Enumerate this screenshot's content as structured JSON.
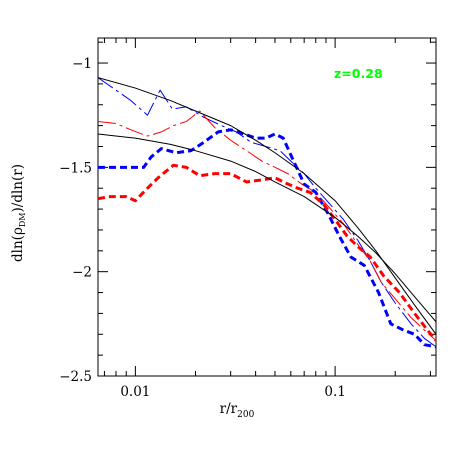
{
  "chart_data": {
    "type": "line",
    "xscale": "log",
    "xlim": [
      0.0065,
      0.32
    ],
    "ylim": [
      -2.5,
      -0.88
    ],
    "xticks": [
      {
        "value": 0.01,
        "label": "0.01"
      },
      {
        "value": 0.1,
        "label": "0.1"
      }
    ],
    "yticks": [
      {
        "value": -1.0,
        "label": "−1"
      },
      {
        "value": -1.5,
        "label": "−1.5"
      },
      {
        "value": -2.0,
        "label": "−2"
      },
      {
        "value": -2.5,
        "label": "−2.5"
      }
    ],
    "xlabel": {
      "main": "r/r",
      "sub": "200"
    },
    "ylabel": {
      "pre": "dln(ρ",
      "sub": "DM",
      "post": ")/dln(r)"
    },
    "annotation": {
      "text": "z=0.28",
      "color": "#00ff00"
    },
    "grid": false,
    "series": [
      {
        "color": "#0000ff",
        "style": "long-dash",
        "width": 1,
        "x": [
          0.0065,
          0.008,
          0.0095,
          0.0115,
          0.0133,
          0.0153,
          0.018,
          0.022,
          0.027,
          0.032,
          0.038,
          0.045,
          0.053,
          0.06,
          0.07,
          0.08,
          0.095,
          0.11,
          0.13,
          0.15,
          0.17,
          0.2,
          0.24,
          0.28,
          0.32
        ],
        "y": [
          -1.07,
          -1.13,
          -1.18,
          -1.25,
          -1.13,
          -1.22,
          -1.21,
          -1.26,
          -1.3,
          -1.33,
          -1.38,
          -1.4,
          -1.42,
          -1.47,
          -1.53,
          -1.6,
          -1.68,
          -1.75,
          -1.85,
          -1.95,
          -2.05,
          -2.15,
          -2.25,
          -2.32,
          -2.36
        ]
      },
      {
        "color": "#ff0000",
        "style": "long-dash",
        "width": 1,
        "x": [
          0.0065,
          0.008,
          0.0095,
          0.0115,
          0.0135,
          0.0155,
          0.018,
          0.021,
          0.025,
          0.03,
          0.036,
          0.043,
          0.05,
          0.058,
          0.068,
          0.08,
          0.095,
          0.11,
          0.13,
          0.15,
          0.17,
          0.2,
          0.24,
          0.28,
          0.32
        ],
        "y": [
          -1.28,
          -1.29,
          -1.32,
          -1.35,
          -1.33,
          -1.3,
          -1.28,
          -1.23,
          -1.31,
          -1.37,
          -1.42,
          -1.47,
          -1.5,
          -1.53,
          -1.58,
          -1.62,
          -1.7,
          -1.77,
          -1.87,
          -1.95,
          -2.05,
          -2.13,
          -2.22,
          -2.28,
          -2.33
        ]
      },
      {
        "color": "#0000ff",
        "style": "short-dash",
        "width": 3,
        "x": [
          0.0065,
          0.008,
          0.0095,
          0.011,
          0.012,
          0.0135,
          0.016,
          0.019,
          0.022,
          0.026,
          0.03,
          0.035,
          0.04,
          0.045,
          0.05,
          0.055,
          0.062,
          0.07,
          0.08,
          0.092,
          0.105,
          0.12,
          0.14,
          0.165,
          0.19,
          0.22,
          0.25,
          0.28,
          0.32
        ],
        "y": [
          -1.5,
          -1.5,
          -1.5,
          -1.5,
          -1.45,
          -1.41,
          -1.43,
          -1.42,
          -1.38,
          -1.33,
          -1.32,
          -1.34,
          -1.36,
          -1.36,
          -1.34,
          -1.36,
          -1.47,
          -1.58,
          -1.62,
          -1.72,
          -1.83,
          -1.93,
          -1.97,
          -2.1,
          -2.25,
          -2.28,
          -2.3,
          -2.35,
          -2.36
        ]
      },
      {
        "color": "#ff0000",
        "style": "short-dash",
        "width": 3,
        "x": [
          0.0065,
          0.0075,
          0.009,
          0.01,
          0.0115,
          0.013,
          0.0155,
          0.018,
          0.021,
          0.025,
          0.03,
          0.036,
          0.043,
          0.05,
          0.058,
          0.065,
          0.075,
          0.088,
          0.1,
          0.115,
          0.13,
          0.15,
          0.175,
          0.21,
          0.25,
          0.29,
          0.32
        ],
        "y": [
          -1.65,
          -1.64,
          -1.64,
          -1.66,
          -1.6,
          -1.55,
          -1.49,
          -1.5,
          -1.54,
          -1.53,
          -1.53,
          -1.57,
          -1.56,
          -1.55,
          -1.58,
          -1.6,
          -1.62,
          -1.68,
          -1.75,
          -1.83,
          -1.88,
          -1.93,
          -2.02,
          -2.1,
          -2.2,
          -2.28,
          -2.33
        ]
      },
      {
        "color": "#000000",
        "style": "solid",
        "width": 1,
        "x": [
          0.0065,
          0.01,
          0.015,
          0.02,
          0.03,
          0.04,
          0.05,
          0.07,
          0.1,
          0.13,
          0.16,
          0.2,
          0.25,
          0.32
        ],
        "y": [
          -1.07,
          -1.12,
          -1.18,
          -1.23,
          -1.3,
          -1.37,
          -1.43,
          -1.53,
          -1.66,
          -1.79,
          -1.9,
          -2.03,
          -2.16,
          -2.3
        ]
      },
      {
        "color": "#000000",
        "style": "solid",
        "width": 1,
        "x": [
          0.0065,
          0.01,
          0.015,
          0.02,
          0.03,
          0.04,
          0.05,
          0.07,
          0.1,
          0.13,
          0.16,
          0.2,
          0.25,
          0.32
        ],
        "y": [
          -1.34,
          -1.36,
          -1.39,
          -1.42,
          -1.47,
          -1.52,
          -1.57,
          -1.64,
          -1.74,
          -1.83,
          -1.91,
          -2.01,
          -2.12,
          -2.24
        ]
      }
    ]
  }
}
